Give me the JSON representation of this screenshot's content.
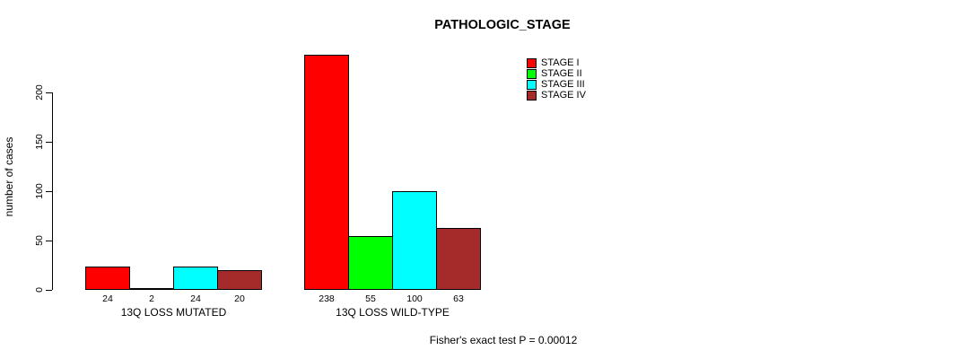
{
  "chart_data": {
    "type": "bar",
    "title": "PATHOLOGIC_STAGE",
    "ylabel": "number of cases",
    "yticks": [
      0,
      50,
      100,
      150,
      200
    ],
    "ylim": [
      0,
      240
    ],
    "grid": false,
    "legend_position": "top-right",
    "categories": [
      "13Q LOSS MUTATED",
      "13Q LOSS WILD-TYPE"
    ],
    "series": [
      {
        "name": "STAGE I",
        "color": "#FF0000",
        "values": [
          24,
          238
        ]
      },
      {
        "name": "STAGE II",
        "color": "#00FF00",
        "values": [
          2,
          55
        ]
      },
      {
        "name": "STAGE III",
        "color": "#00FFFF",
        "values": [
          24,
          100
        ]
      },
      {
        "name": "STAGE IV",
        "color": "#A52A2A",
        "values": [
          20,
          63
        ]
      }
    ],
    "bar_labels_shown": true,
    "footnote": "Fisher's exact test P = 0.00012"
  }
}
